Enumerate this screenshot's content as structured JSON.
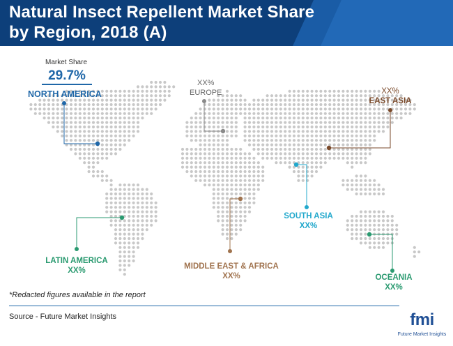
{
  "header": {
    "title": "Natural Insect Repellent Market Share by Region, 2018 (A)"
  },
  "highlight": {
    "caption": "Market Share",
    "value": "29.7%"
  },
  "chart_data": {
    "type": "map",
    "title": "Natural Insect Repellent Market Share by Region, 2018 (A)",
    "regions": [
      {
        "name": "NORTH AMERICA",
        "value": "29.7%",
        "color": "#1f67a8"
      },
      {
        "name": "EUROPE",
        "value": "XX%",
        "color": "#8a8a8a"
      },
      {
        "name": "EAST ASIA",
        "value": "XX%",
        "color": "#7a4a2b"
      },
      {
        "name": "SOUTH ASIA",
        "value": "XX%",
        "color": "#22a8cc"
      },
      {
        "name": "LATIN AMERICA",
        "value": "XX%",
        "color": "#2a9a70"
      },
      {
        "name": "MIDDLE EAST & AFRICA",
        "value": "XX%",
        "color": "#a0734e"
      },
      {
        "name": "OCEANIA",
        "value": "XX%",
        "color": "#2a9a70"
      }
    ]
  },
  "footnote": "*Redacted figures available in the report",
  "source": "Source - Future Market Insights",
  "logo": {
    "text": "fmi",
    "subtext": "Future Market Insights"
  },
  "colors": {
    "header_dark": "#0d3f7a",
    "header_mid": "#1a5ca6",
    "dot": "#c8c8c8"
  }
}
